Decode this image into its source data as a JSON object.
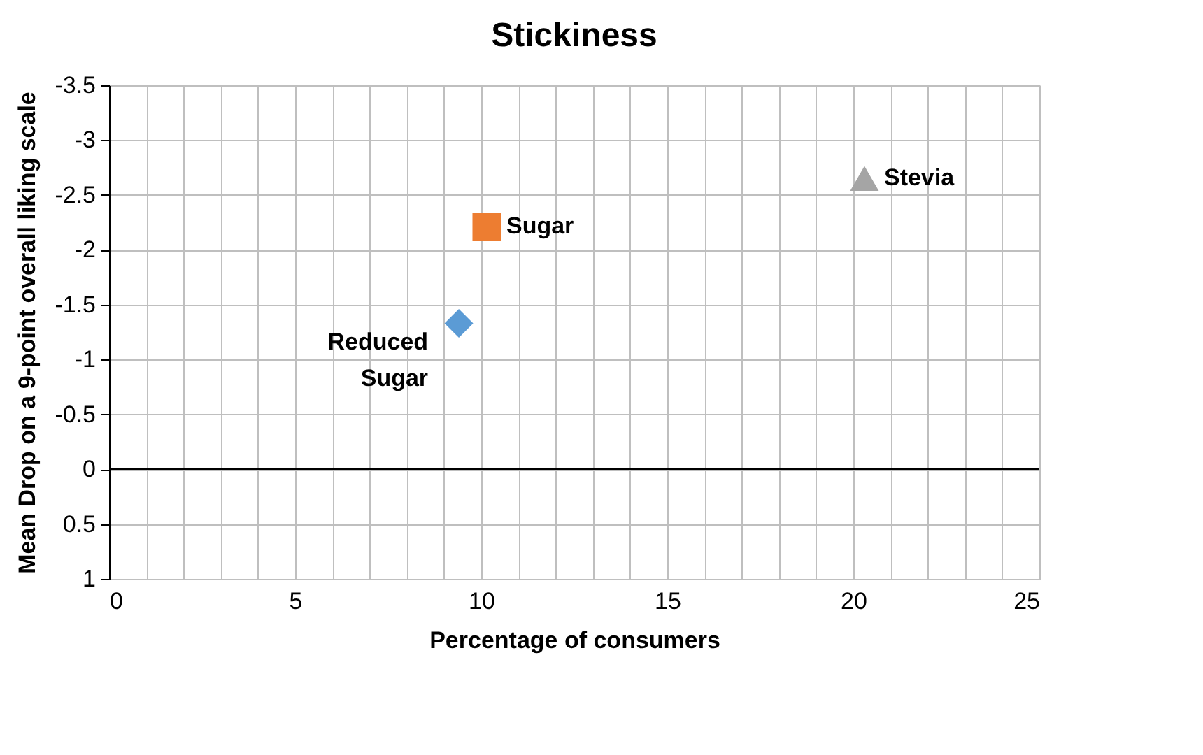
{
  "chart_data": {
    "type": "scatter",
    "title": "Stickiness",
    "xlabel": "Percentage of consumers",
    "ylabel": "Mean Drop on a 9-point overall liking scale",
    "xlim": [
      0,
      25
    ],
    "xticks": [
      0,
      {
        "value": 1,
        "label": null
      },
      {
        "value": 2,
        "label": null
      },
      {
        "value": 3,
        "label": null
      },
      {
        "value": 4,
        "label": null
      },
      5,
      {
        "value": 6,
        "label": null
      },
      {
        "value": 7,
        "label": null
      },
      {
        "value": 8,
        "label": null
      },
      {
        "value": 9,
        "label": null
      },
      10,
      {
        "value": 11,
        "label": null
      },
      {
        "value": 12,
        "label": null
      },
      {
        "value": 13,
        "label": null
      },
      {
        "value": 14,
        "label": null
      },
      15,
      {
        "value": 16,
        "label": null
      },
      {
        "value": 17,
        "label": null
      },
      {
        "value": 18,
        "label": null
      },
      {
        "value": 19,
        "label": null
      },
      20,
      {
        "value": 21,
        "label": null
      },
      {
        "value": 22,
        "label": null
      },
      {
        "value": 23,
        "label": null
      },
      {
        "value": 24,
        "label": null
      },
      25
    ],
    "ylim": [
      1,
      -3.5
    ],
    "yticks": [
      -3.5,
      -3,
      -2.5,
      -2,
      -1.5,
      -1,
      -0.5,
      0,
      0.5,
      1
    ],
    "grid": true,
    "legend": false,
    "ref_lines": [
      {
        "axis": "y",
        "value": 0,
        "color": "#000000"
      }
    ],
    "series": [
      {
        "name": "Reduced Sugar",
        "color": "#5b9bd5",
        "marker": "diamond",
        "x": [
          9.4
        ],
        "values": [
          -1.33
        ]
      },
      {
        "name": "Sugar",
        "color": "#ed7d31",
        "marker": "square",
        "x": [
          10.15
        ],
        "values": [
          -2.21
        ]
      },
      {
        "name": "Stevia",
        "color": "#a5a5a5",
        "marker": "triangle",
        "x": [
          20.3
        ],
        "values": [
          -2.65
        ]
      }
    ]
  }
}
